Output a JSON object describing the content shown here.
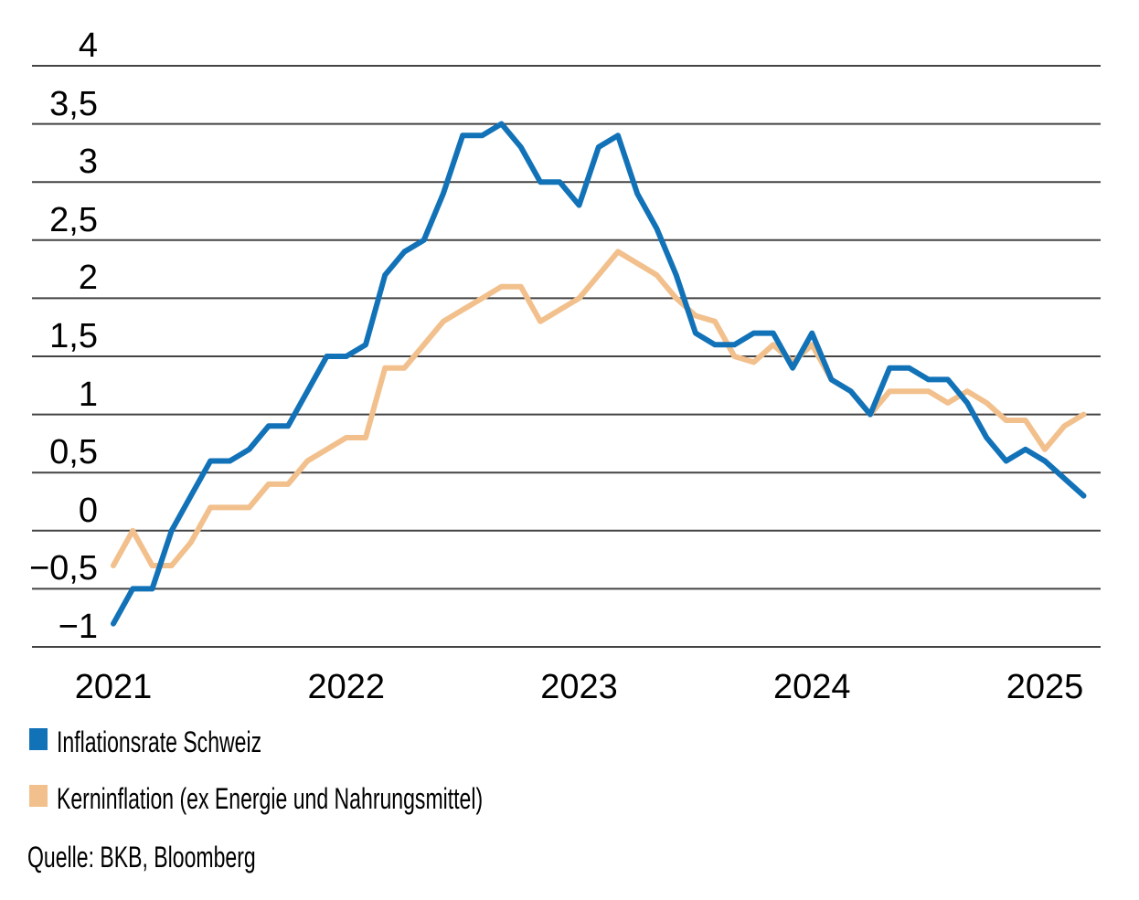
{
  "chart_data": {
    "type": "line",
    "title": "",
    "xlabel": "",
    "ylabel": "",
    "ylim": [
      -1,
      4
    ],
    "grid": "horizontal-gridlines",
    "legend_position": "bottom-left",
    "decimal_separator": "comma",
    "x_tick_labels": [
      "2021",
      "2022",
      "2023",
      "2024",
      "2025"
    ],
    "y_ticks": [
      {
        "value": 4,
        "label": "4"
      },
      {
        "value": 3.5,
        "label": "3,5"
      },
      {
        "value": 3,
        "label": "3"
      },
      {
        "value": 2.5,
        "label": "2,5"
      },
      {
        "value": 2,
        "label": "2"
      },
      {
        "value": 1.5,
        "label": "1,5"
      },
      {
        "value": 1,
        "label": "1"
      },
      {
        "value": 0.5,
        "label": "0,5"
      },
      {
        "value": 0,
        "label": "0"
      },
      {
        "value": -0.5,
        "label": "−0,5"
      },
      {
        "value": -1,
        "label": "−1"
      }
    ],
    "x_months": [
      "2020-12",
      "2021-01",
      "2021-02",
      "2021-03",
      "2021-04",
      "2021-05",
      "2021-06",
      "2021-07",
      "2021-08",
      "2021-09",
      "2021-10",
      "2021-11",
      "2021-12",
      "2022-01",
      "2022-02",
      "2022-03",
      "2022-04",
      "2022-05",
      "2022-06",
      "2022-07",
      "2022-08",
      "2022-09",
      "2022-10",
      "2022-11",
      "2022-12",
      "2023-01",
      "2023-02",
      "2023-03",
      "2023-04",
      "2023-05",
      "2023-06",
      "2023-07",
      "2023-08",
      "2023-09",
      "2023-10",
      "2023-11",
      "2023-12",
      "2024-01",
      "2024-02",
      "2024-03",
      "2024-04",
      "2024-05",
      "2024-06",
      "2024-07",
      "2024-08",
      "2024-09",
      "2024-10",
      "2024-11",
      "2024-12",
      "2025-01",
      "2025-02"
    ],
    "series": [
      {
        "name": "Inflationsrate Schweiz",
        "color": "#1272b8",
        "values": [
          -0.8,
          -0.5,
          -0.5,
          0.0,
          0.3,
          0.6,
          0.6,
          0.7,
          0.9,
          0.9,
          1.2,
          1.5,
          1.5,
          1.6,
          2.2,
          2.4,
          2.5,
          2.9,
          3.4,
          3.4,
          3.5,
          3.3,
          3.0,
          3.0,
          2.8,
          3.3,
          3.4,
          2.9,
          2.6,
          2.2,
          1.7,
          1.6,
          1.6,
          1.7,
          1.7,
          1.4,
          1.7,
          1.3,
          1.2,
          1.0,
          1.4,
          1.4,
          1.3,
          1.3,
          1.1,
          0.8,
          0.6,
          0.7,
          0.6,
          0.45,
          0.3
        ]
      },
      {
        "name": "Kerninflation (ex Energie und Nahrungsmittel)",
        "color": "#f2c08c",
        "values": [
          -0.3,
          0.0,
          -0.3,
          -0.3,
          -0.1,
          0.2,
          0.2,
          0.2,
          0.4,
          0.4,
          0.6,
          0.7,
          0.8,
          0.8,
          1.4,
          1.4,
          1.6,
          1.8,
          1.9,
          2.0,
          2.1,
          2.1,
          1.8,
          1.9,
          2.0,
          2.2,
          2.4,
          2.3,
          2.2,
          2.0,
          1.85,
          1.8,
          1.5,
          1.45,
          1.6,
          1.45,
          1.6,
          1.3,
          1.2,
          1.0,
          1.2,
          1.2,
          1.2,
          1.1,
          1.2,
          1.1,
          0.95,
          0.95,
          0.7,
          0.9,
          1.0
        ]
      }
    ],
    "gridline_color": "#434343"
  },
  "legend": {
    "items": [
      {
        "label": "Inflationsrate Schweiz",
        "color": "#1272b8"
      },
      {
        "label": "Kerninflation (ex Energie und Nahrungsmittel)",
        "color": "#f2c08c"
      }
    ]
  },
  "source": {
    "text": "Quelle: BKB, Bloomberg"
  }
}
